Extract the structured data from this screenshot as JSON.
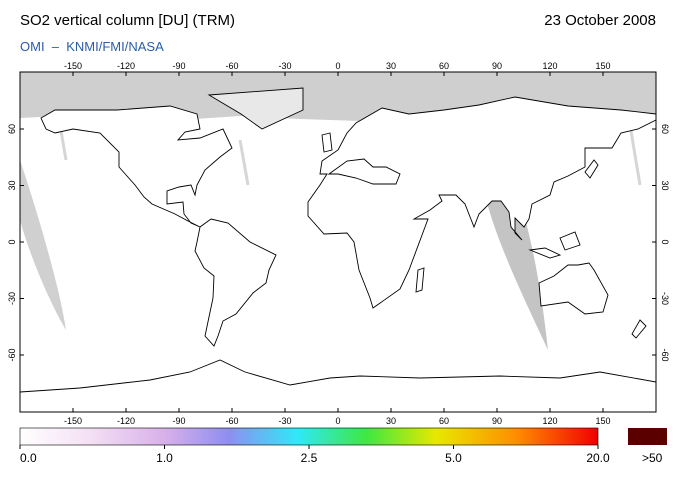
{
  "header": {
    "title": "SO2 vertical column [DU] (TRM)",
    "date": "23 October 2008",
    "source": "OMI  –  KNMI/FMI/NASA"
  },
  "map": {
    "lon_ticks": [
      -150,
      -120,
      -90,
      -60,
      -30,
      0,
      30,
      60,
      90,
      120,
      150
    ],
    "lat_ticks": [
      60,
      30,
      0,
      -30,
      -60
    ]
  },
  "colorbar": {
    "ticks": [
      {
        "value": 0,
        "label": "0.0"
      },
      {
        "value": 1,
        "label": "1.0"
      },
      2.5,
      {
        "value": 5,
        "label": "5.0"
      },
      {
        "value": 20,
        "label": "20.0"
      }
    ],
    "overflow_label": ">50"
  }
}
